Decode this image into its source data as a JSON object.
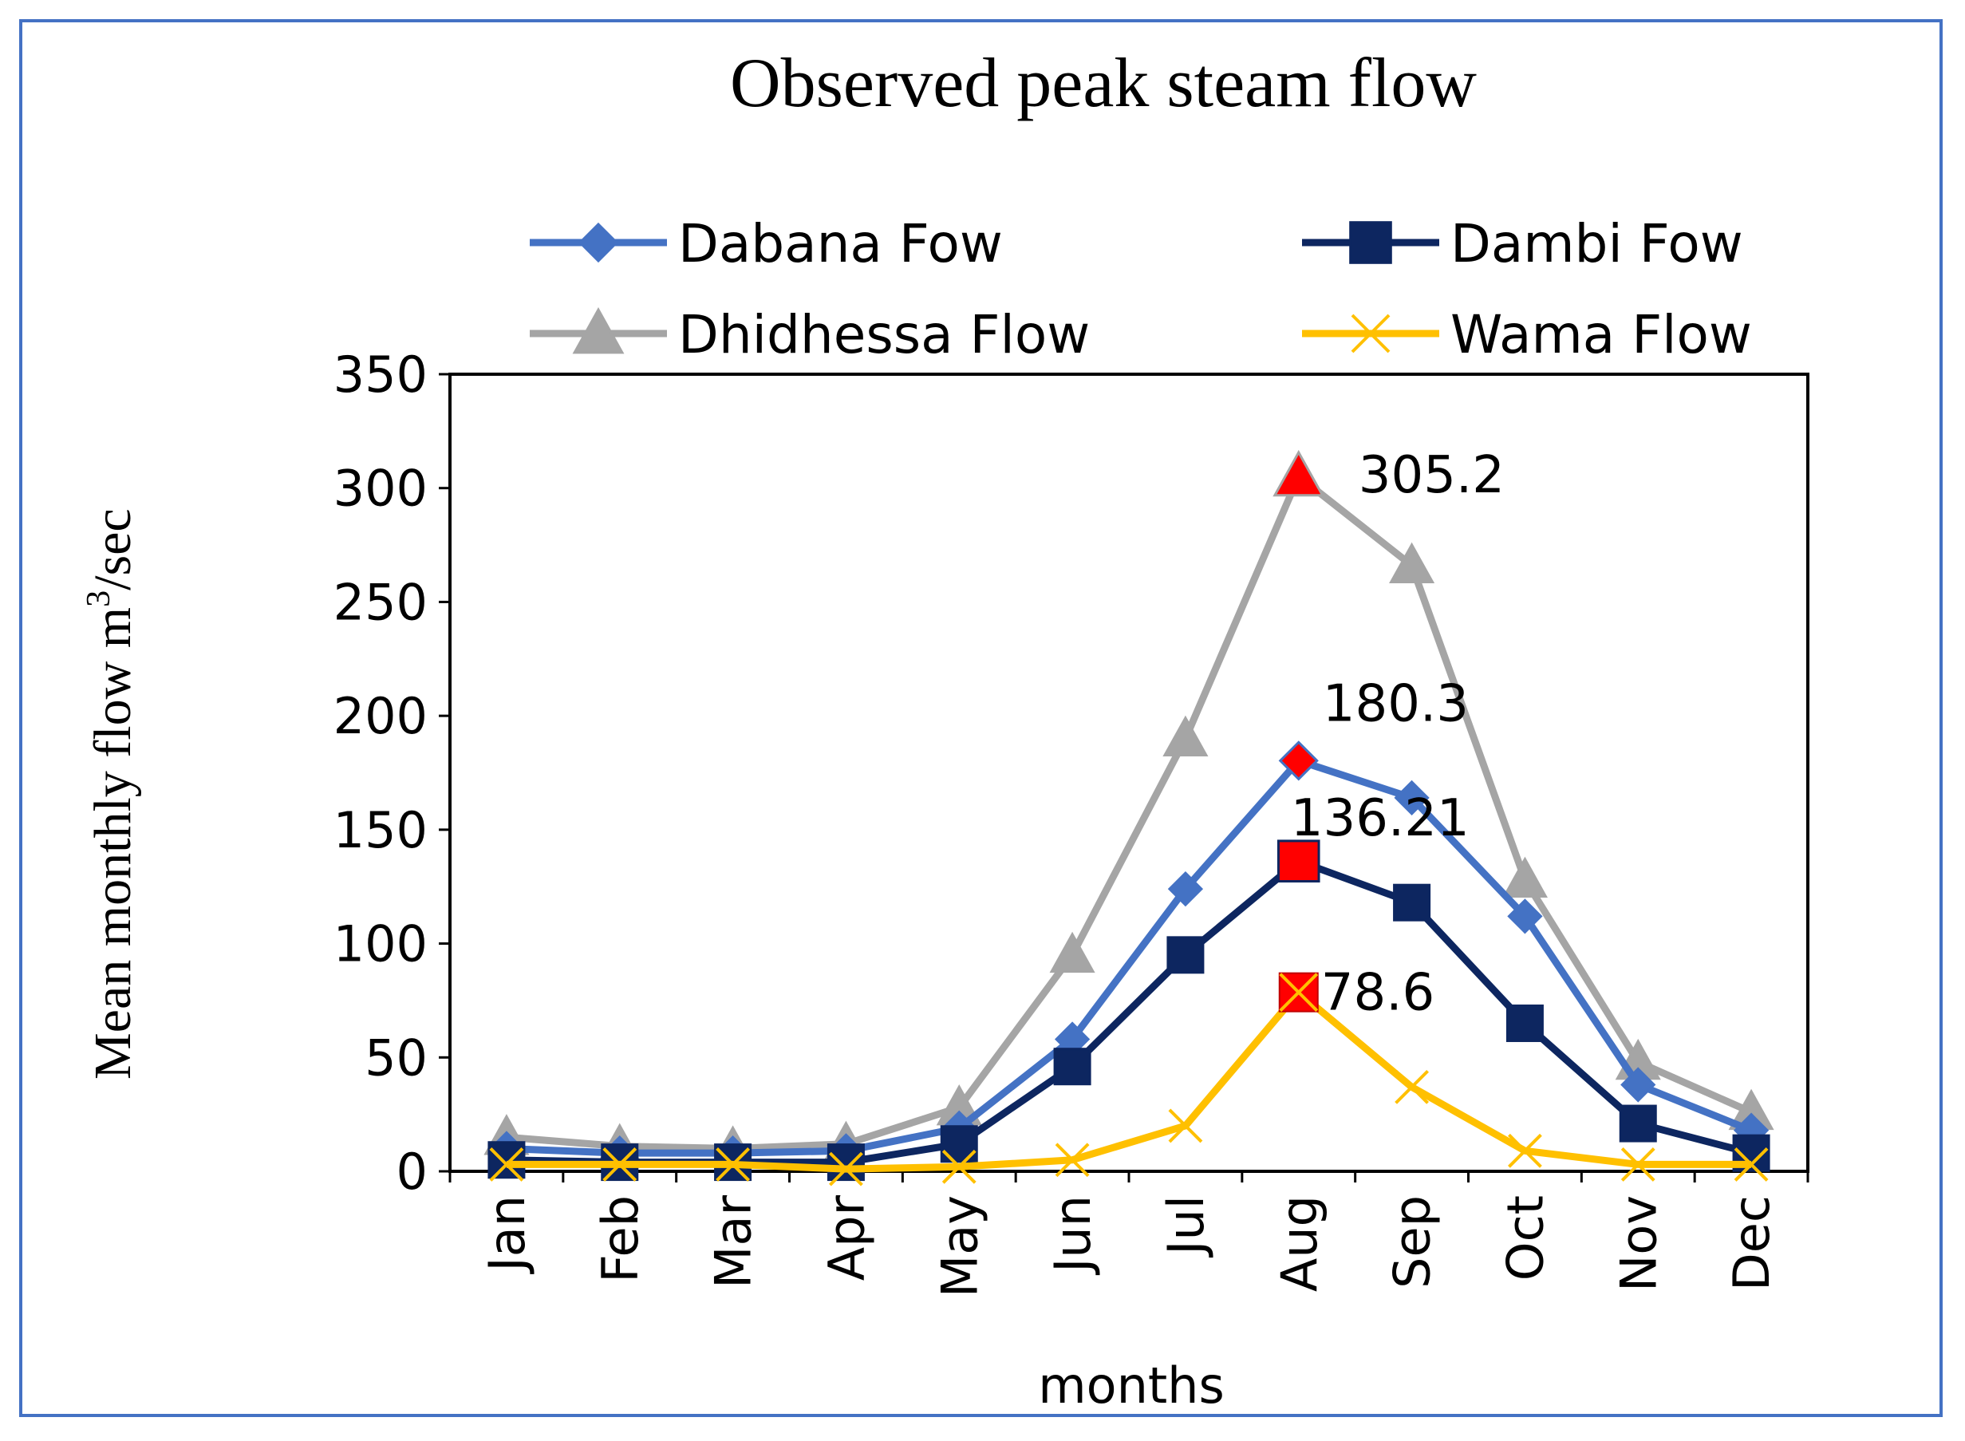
{
  "chart_data": {
    "type": "line",
    "title": "Observed peak steam flow",
    "xlabel": "months",
    "ylabel": "Mean monthly flow m",
    "ylabel_sup": "3",
    "ylabel_suffix": "/sec",
    "categories": [
      "Jan",
      "Feb",
      "Mar",
      "Apr",
      "May",
      "Jun",
      "Jul",
      "Aug",
      "Sep",
      "Oct",
      "Nov",
      "Dec"
    ],
    "ylim": [
      0,
      350
    ],
    "yticks": [
      0,
      50,
      100,
      150,
      200,
      250,
      300,
      350
    ],
    "grid": false,
    "legend_position": "top",
    "series": [
      {
        "name": "Dabana Fow",
        "color": "#4472c4",
        "marker": "diamond",
        "values": [
          10,
          8,
          8,
          9,
          19,
          58,
          124,
          180.3,
          164,
          112,
          38,
          18
        ]
      },
      {
        "name": "Dambi Fow",
        "color": "#0d2660",
        "marker": "square",
        "values": [
          5,
          4,
          4,
          4,
          12,
          46,
          95,
          136.21,
          118,
          65,
          21,
          8
        ]
      },
      {
        "name": "Dhidhessa Flow",
        "color": "#a5a5a5",
        "marker": "triangle",
        "values": [
          15,
          11,
          10,
          12,
          28,
          95,
          190,
          305.2,
          266,
          128,
          48,
          26
        ]
      },
      {
        "name": "Wama Flow",
        "color": "#ffc000",
        "marker": "x",
        "values": [
          3,
          3,
          3,
          1,
          2,
          5,
          20,
          78.6,
          37,
          9,
          3,
          3
        ]
      }
    ],
    "annotations": [
      {
        "series": "Dhidhessa Flow",
        "category": "Aug",
        "text": "305.2"
      },
      {
        "series": "Dabana Fow",
        "category": "Aug",
        "text": "180.3"
      },
      {
        "series": "Dambi Fow",
        "category": "Aug",
        "text": "136.21"
      },
      {
        "series": "Wama Flow",
        "category": "Aug",
        "text": "78.6"
      }
    ],
    "highlight_color": "#ff0000"
  }
}
